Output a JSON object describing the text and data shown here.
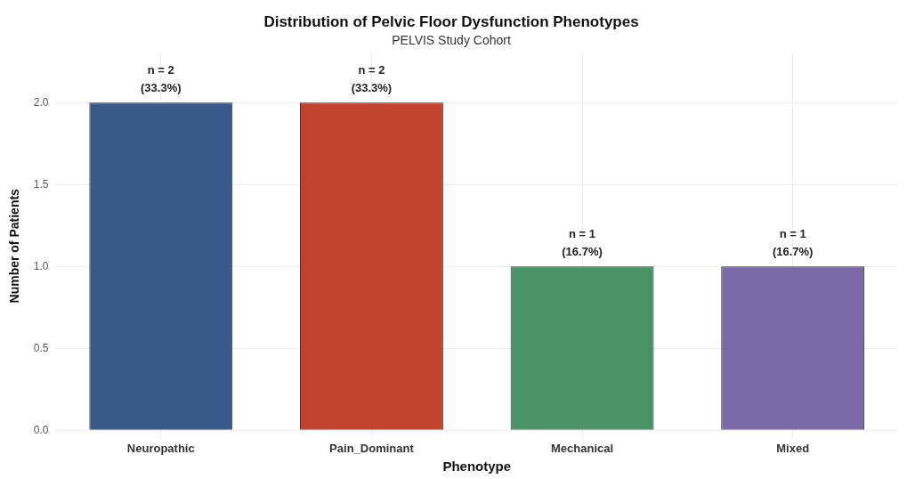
{
  "chart_data": {
    "type": "bar",
    "title": "Distribution of Pelvic Floor Dysfunction Phenotypes",
    "subtitle": "PELVIS Study Cohort",
    "xlabel": "Phenotype",
    "ylabel": "Number of Patients",
    "categories": [
      "Neuropathic",
      "Pain_Dominant",
      "Mechanical",
      "Mixed"
    ],
    "values": [
      2,
      2,
      1,
      1
    ],
    "colors": [
      "#3a5a8c",
      "#c0432f",
      "#4a9268",
      "#7b6aa6"
    ],
    "value_labels": [
      "n = 2\n(33.3%)",
      "n = 2\n(33.3%)",
      "n = 1\n(16.7%)",
      "n = 1\n(16.7%)"
    ],
    "ylim": [
      -0.05,
      2.3
    ],
    "yticks": [
      {
        "value": 0,
        "label": "0.0"
      },
      {
        "value": 0.5,
        "label": "0.5"
      },
      {
        "value": 1,
        "label": "1.0"
      },
      {
        "value": 1.5,
        "label": "1.5"
      },
      {
        "value": 2,
        "label": "2.0"
      }
    ],
    "grid": true,
    "legend": false
  }
}
